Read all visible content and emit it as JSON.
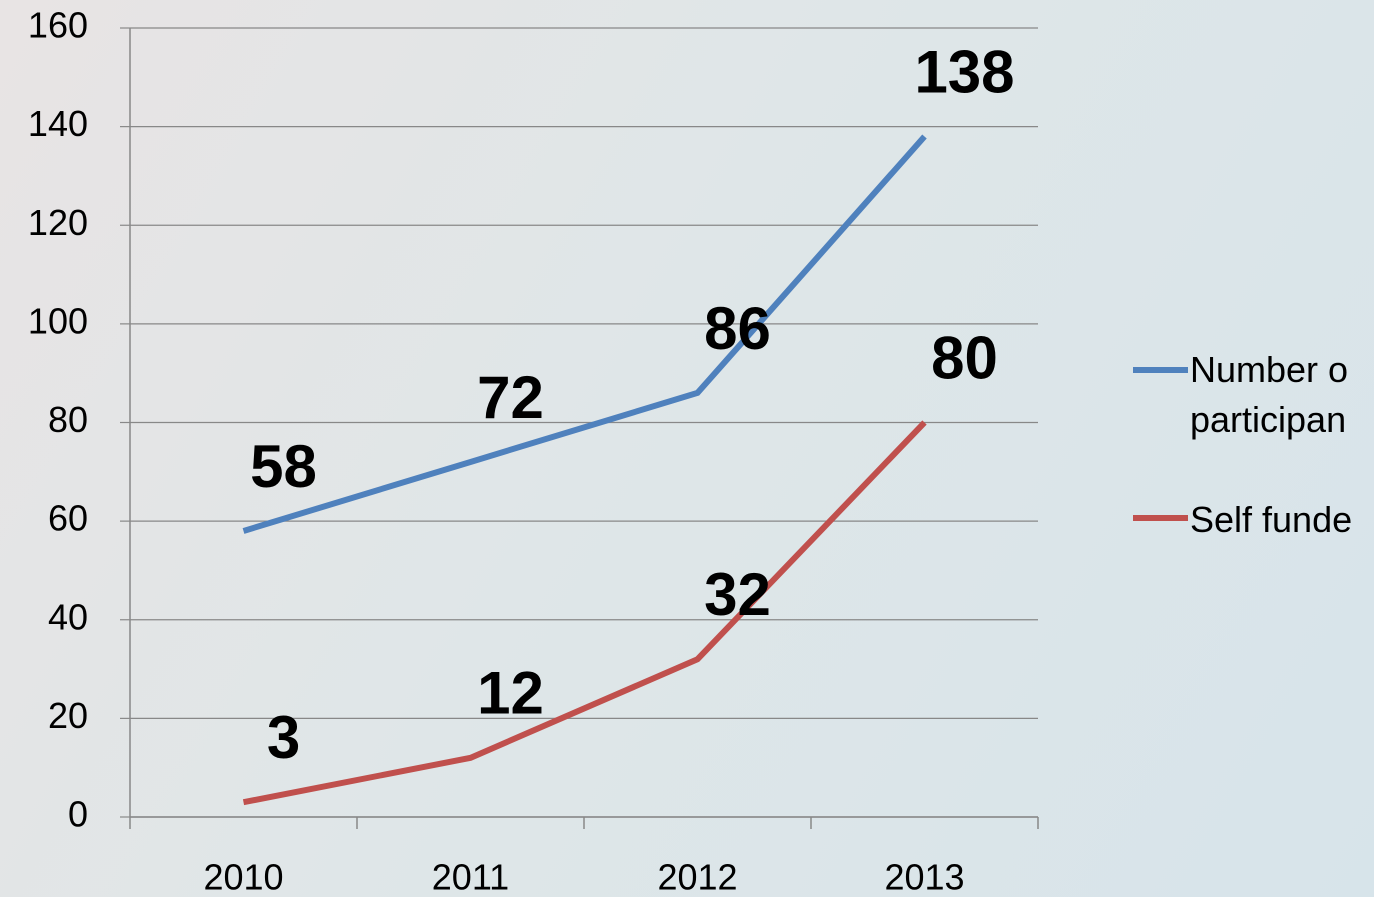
{
  "chart_data": {
    "type": "line",
    "categories": [
      "2010",
      "2011",
      "2012",
      "2013"
    ],
    "series": [
      {
        "name": "Number o participan",
        "color": "#4f81bd",
        "values": [
          58,
          72,
          86,
          138
        ]
      },
      {
        "name": "Self funde",
        "color": "#c0504d",
        "values": [
          3,
          12,
          32,
          80
        ]
      }
    ],
    "ylim": [
      0,
      160
    ],
    "yticks": [
      0,
      20,
      40,
      60,
      80,
      100,
      120,
      140,
      160
    ],
    "grid": true
  }
}
